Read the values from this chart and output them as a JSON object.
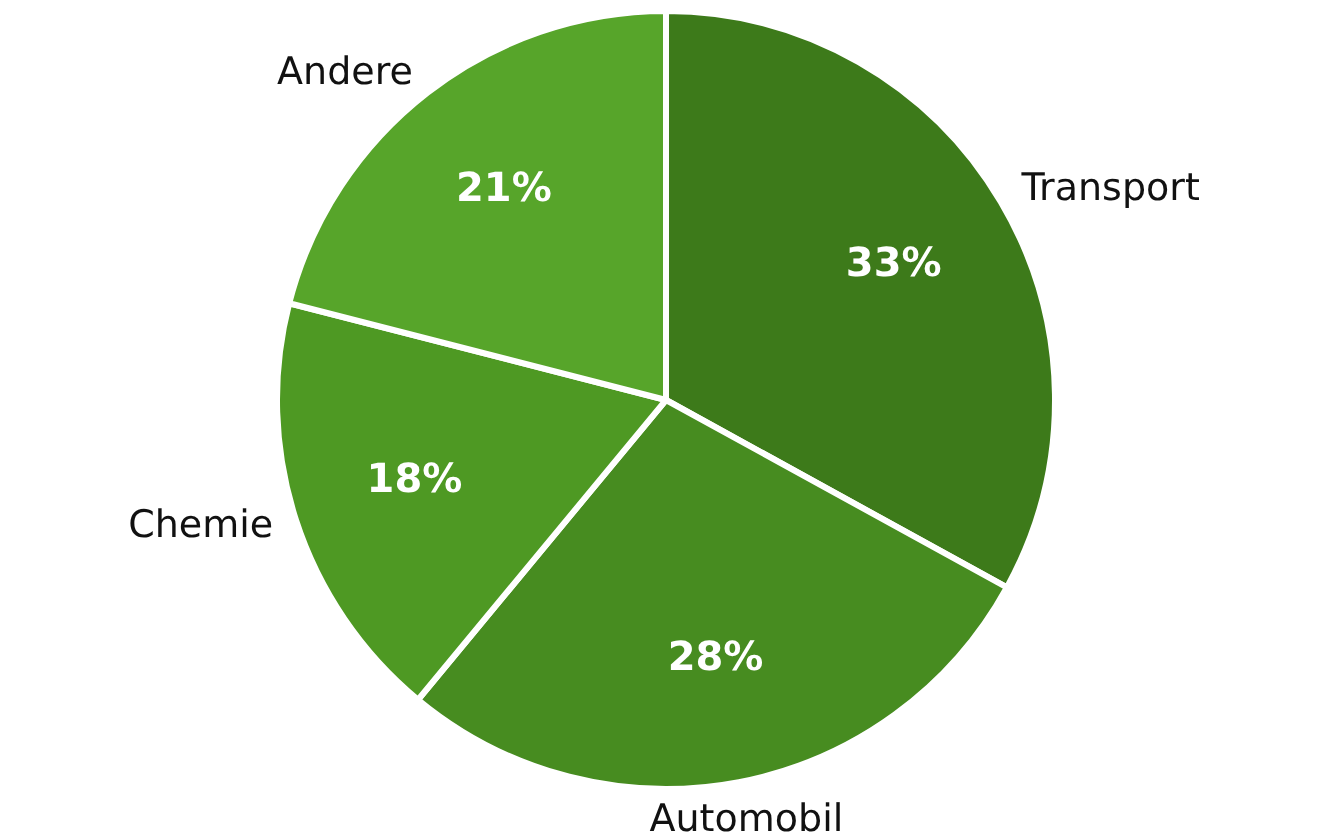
{
  "chart_data": {
    "type": "pie",
    "categories": [
      "Transport",
      "Automobil",
      "Chemie",
      "Andere"
    ],
    "values": [
      33,
      28,
      18,
      21
    ],
    "value_labels": [
      "33%",
      "28%",
      "18%",
      "21%"
    ],
    "colors": [
      "#3d7a1a",
      "#478c20",
      "#4e9923",
      "#57a52a"
    ],
    "legend": false
  }
}
